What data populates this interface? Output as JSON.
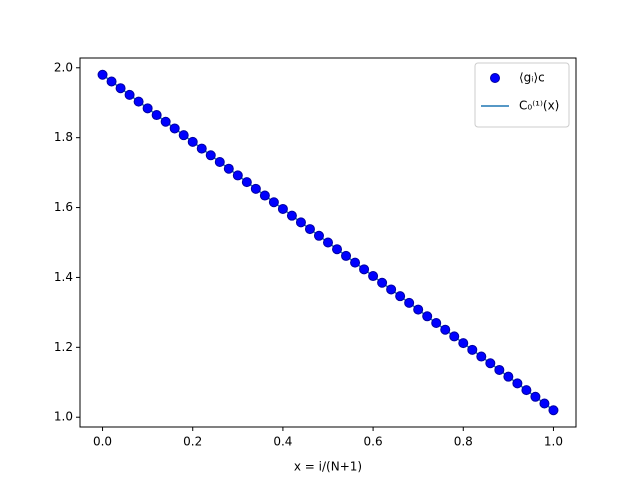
{
  "chart_data": {
    "type": "scatter",
    "xlabel": "x = i/(N+1)",
    "xlim": [
      -0.05,
      1.05
    ],
    "ylim": [
      0.972,
      2.028
    ],
    "xticks": [
      {
        "value": 0,
        "label": "0.0"
      },
      {
        "value": 0.2,
        "label": "0.2"
      },
      {
        "value": 0.4,
        "label": "0.4"
      },
      {
        "value": 0.6,
        "label": "0.6"
      },
      {
        "value": 0.8,
        "label": "0.8"
      },
      {
        "value": 1,
        "label": "1.0"
      }
    ],
    "yticks": [
      {
        "value": 1,
        "label": "1.0"
      },
      {
        "value": 1.2,
        "label": "1.2"
      },
      {
        "value": 1.4,
        "label": "1.4"
      },
      {
        "value": 1.6,
        "label": "1.6"
      },
      {
        "value": 1.8,
        "label": "1.8"
      },
      {
        "value": 2,
        "label": "2.0"
      }
    ],
    "grid": false,
    "legend": "upper right",
    "series": [
      {
        "name": "⟨gᵢ⟩c",
        "type": "scatter",
        "color": "#0000ff",
        "x": [
          0,
          0.02,
          0.04,
          0.06,
          0.08,
          0.1,
          0.12,
          0.14,
          0.16,
          0.18,
          0.2,
          0.22,
          0.24,
          0.26,
          0.28,
          0.3,
          0.32,
          0.34,
          0.36,
          0.38,
          0.4,
          0.42,
          0.44,
          0.46,
          0.48,
          0.5,
          0.52,
          0.54,
          0.56,
          0.58,
          0.6,
          0.62,
          0.64,
          0.66,
          0.68,
          0.7,
          0.72,
          0.74,
          0.76,
          0.78,
          0.8,
          0.82,
          0.84,
          0.86,
          0.88,
          0.9,
          0.92,
          0.94,
          0.96,
          0.98,
          1
        ],
        "values": [
          1.98,
          1.9608,
          1.9416,
          1.9224,
          1.9032,
          1.884,
          1.8648,
          1.8456,
          1.8264,
          1.8072,
          1.788,
          1.7688,
          1.7496,
          1.7304,
          1.7112,
          1.692,
          1.6728,
          1.6536,
          1.6344,
          1.6152,
          1.596,
          1.5768,
          1.5576,
          1.5384,
          1.5192,
          1.5,
          1.4808,
          1.4616,
          1.4424,
          1.4232,
          1.404,
          1.3848,
          1.3656,
          1.3464,
          1.3272,
          1.308,
          1.2888,
          1.2696,
          1.2504,
          1.2312,
          1.212,
          1.1928,
          1.1736,
          1.1544,
          1.1352,
          1.116,
          1.0968,
          1.0776,
          1.0584,
          1.0392,
          1.02
        ]
      },
      {
        "name": "C₀⁽¹⁾(x)",
        "type": "line",
        "color": "#1f77b4",
        "x": [
          0,
          0.02,
          0.04,
          0.06,
          0.08,
          0.1,
          0.12,
          0.14,
          0.16,
          0.18,
          0.2,
          0.22,
          0.24,
          0.26,
          0.28,
          0.3,
          0.32,
          0.34,
          0.36,
          0.38,
          0.4,
          0.42,
          0.44,
          0.46,
          0.48,
          0.5,
          0.52,
          0.54,
          0.56,
          0.58,
          0.6,
          0.62,
          0.64,
          0.66,
          0.68,
          0.7,
          0.72,
          0.74,
          0.76,
          0.78,
          0.8,
          0.82,
          0.84,
          0.86,
          0.88,
          0.9,
          0.92,
          0.94,
          0.96,
          0.98,
          1
        ],
        "values": [
          1.98,
          1.9608,
          1.9416,
          1.9224,
          1.9032,
          1.884,
          1.8648,
          1.8456,
          1.8264,
          1.8072,
          1.788,
          1.7688,
          1.7496,
          1.7304,
          1.7112,
          1.692,
          1.6728,
          1.6536,
          1.6344,
          1.6152,
          1.596,
          1.5768,
          1.5576,
          1.5384,
          1.5192,
          1.5,
          1.4808,
          1.4616,
          1.4424,
          1.4232,
          1.404,
          1.3848,
          1.3656,
          1.3464,
          1.3272,
          1.308,
          1.2888,
          1.2696,
          1.2504,
          1.2312,
          1.212,
          1.1928,
          1.1736,
          1.1544,
          1.1352,
          1.116,
          1.0968,
          1.0776,
          1.0584,
          1.0392,
          1.02
        ]
      }
    ]
  }
}
